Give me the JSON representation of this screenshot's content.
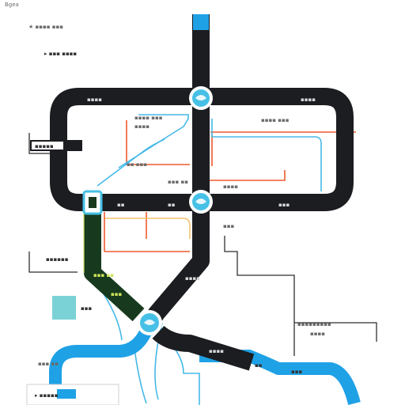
{
  "map": {
    "colors": {
      "background": "#ffffff",
      "main_line": "#1b1d21",
      "blue_line": "#1fa1e6",
      "green_line": "#173a1e",
      "cyan_line": "#46b9e8",
      "orange_line": "#ef5a2e",
      "yellow_line": "#f1c36b",
      "station": "#46c0e6",
      "station_ring": "#ffffff",
      "label": "#6b6b6b"
    },
    "labels": {
      "corner": "Bgea",
      "left_top_a": "★ ▪▪▪▪ ▪▪▪",
      "left_top_b": "▸ ▪▪▪ ▪▪▪▪",
      "ring_left": "▪▪▪▪",
      "ring_right": "▪▪▪▪",
      "center_a": "▪▪▪▪ ▪▪▪",
      "center_b": "▪▪▪▪",
      "right_a": "▪▪▪▪ ▪▪▪",
      "center_c": "▪▪ ▪▪▪",
      "center_d": "▪▪▪ ▪▪",
      "callout_left": "▪▪▪▪▪",
      "ring_bottom_left": "▪▪",
      "ring_bottom_mid": "▪▪",
      "ring_bottom_right": "▪▪▪",
      "right_b": "▪▪▪▪",
      "right_c": "▪▪▪",
      "left_mid": "▪▪▪▪▪▪",
      "green_a": "▪▪▪ ▪▪",
      "green_b": "▪▪▪",
      "diag_a": "▪▪▪▪",
      "key_box": "▪▪▪",
      "left_low": "▪▪▪ ▪▪",
      "right_low_a": "▪▪▪▪▪▪▪▪▪",
      "right_low_b": "▪▪▪▪",
      "bottom_black": "▪▪▪▪",
      "bottom_blue_a": "▪▪",
      "bottom_blue_b": "▪▪▪",
      "bottom_left": "▸ ▪▪▪▪▪"
    }
  }
}
